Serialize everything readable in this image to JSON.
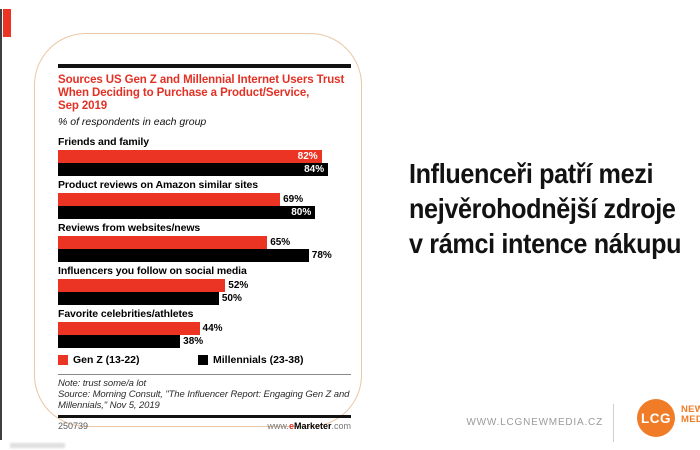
{
  "colors": {
    "red": "#ec3424",
    "black": "#000000",
    "orange": "#f07c28",
    "card_border": "#eac7a6"
  },
  "chart_card": {
    "title_lines": [
      "Sources US Gen Z and Millennial Internet Users Trust",
      "When Deciding to Purchase a Product/Service,",
      "Sep 2019"
    ],
    "subtitle": "% of respondents in each group",
    "legend": [
      {
        "label": "Gen Z (13-22)",
        "color": "#ec3424"
      },
      {
        "label": "Millennials (23-38)",
        "color": "#000000"
      }
    ],
    "note_lines": [
      "Note: trust some/a lot",
      "Source: Morning Consult, \"The Influencer Report: Engaging Gen Z and",
      "Millennials,\" Nov 5, 2019"
    ],
    "chart_id": "250739",
    "site": {
      "www": "www.",
      "e": "e",
      "marketer": "Marketer",
      "com": ".com"
    }
  },
  "chart_data": {
    "type": "bar",
    "orientation": "horizontal",
    "title": "Sources US Gen Z and Millennial Internet Users Trust When Deciding to Purchase a Product/Service, Sep 2019",
    "subtitle": "% of respondents in each group",
    "unit": "%",
    "categories": [
      "Friends and family",
      "Product reviews on Amazon similar sites",
      "Reviews from websites/news",
      "Influencers you follow on social media",
      "Favorite celebrities/athletes"
    ],
    "series": [
      {
        "name": "Gen Z (13-22)",
        "color": "#ec3424",
        "values": [
          82,
          69,
          65,
          52,
          44
        ]
      },
      {
        "name": "Millennials (23-38)",
        "color": "#000000",
        "values": [
          84,
          80,
          78,
          50,
          38
        ]
      }
    ],
    "value_labels_shown": true,
    "axis_shown": false
  },
  "headline": {
    "lines": [
      "Influenceři patří mezi",
      "nejvěrohodnější zdroje",
      "v rámci intence nákupu"
    ],
    "text": "Influenceři patří mezi nejvěrohodnější zdroje v rámci intence nákupu"
  },
  "footer": {
    "url": "WWW.LCGNEWMEDIA.CZ",
    "logo_text": "LCG",
    "logo_caption_lines": [
      "NEW",
      "MEDIA"
    ]
  }
}
